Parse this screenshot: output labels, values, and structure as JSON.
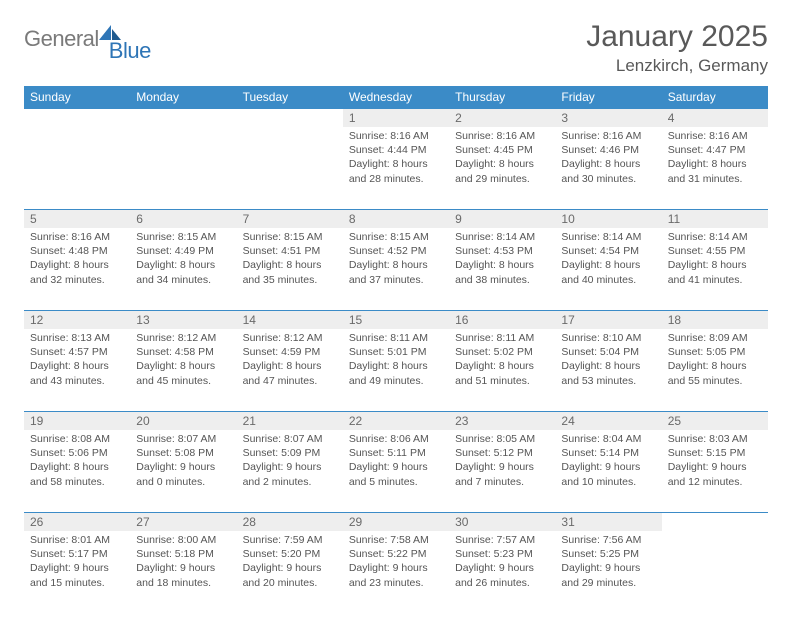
{
  "logo": {
    "general": "General",
    "blue": "Blue"
  },
  "title": "January 2025",
  "location": "Lenzkirch, Germany",
  "colors": {
    "header_bg": "#3b8bc7",
    "header_text": "#ffffff",
    "daynum_bg": "#eeeeee",
    "cell_border": "#3b8bc7",
    "text": "#555555",
    "logo_gray": "#7a7a7a",
    "logo_blue": "#2e75b6"
  },
  "weekdays": [
    "Sunday",
    "Monday",
    "Tuesday",
    "Wednesday",
    "Thursday",
    "Friday",
    "Saturday"
  ],
  "weeks": [
    [
      null,
      null,
      null,
      {
        "d": "1",
        "sr": "8:16 AM",
        "ss": "4:44 PM",
        "dl1": "8 hours",
        "dl2": "28 minutes."
      },
      {
        "d": "2",
        "sr": "8:16 AM",
        "ss": "4:45 PM",
        "dl1": "8 hours",
        "dl2": "29 minutes."
      },
      {
        "d": "3",
        "sr": "8:16 AM",
        "ss": "4:46 PM",
        "dl1": "8 hours",
        "dl2": "30 minutes."
      },
      {
        "d": "4",
        "sr": "8:16 AM",
        "ss": "4:47 PM",
        "dl1": "8 hours",
        "dl2": "31 minutes."
      }
    ],
    [
      {
        "d": "5",
        "sr": "8:16 AM",
        "ss": "4:48 PM",
        "dl1": "8 hours",
        "dl2": "32 minutes."
      },
      {
        "d": "6",
        "sr": "8:15 AM",
        "ss": "4:49 PM",
        "dl1": "8 hours",
        "dl2": "34 minutes."
      },
      {
        "d": "7",
        "sr": "8:15 AM",
        "ss": "4:51 PM",
        "dl1": "8 hours",
        "dl2": "35 minutes."
      },
      {
        "d": "8",
        "sr": "8:15 AM",
        "ss": "4:52 PM",
        "dl1": "8 hours",
        "dl2": "37 minutes."
      },
      {
        "d": "9",
        "sr": "8:14 AM",
        "ss": "4:53 PM",
        "dl1": "8 hours",
        "dl2": "38 minutes."
      },
      {
        "d": "10",
        "sr": "8:14 AM",
        "ss": "4:54 PM",
        "dl1": "8 hours",
        "dl2": "40 minutes."
      },
      {
        "d": "11",
        "sr": "8:14 AM",
        "ss": "4:55 PM",
        "dl1": "8 hours",
        "dl2": "41 minutes."
      }
    ],
    [
      {
        "d": "12",
        "sr": "8:13 AM",
        "ss": "4:57 PM",
        "dl1": "8 hours",
        "dl2": "43 minutes."
      },
      {
        "d": "13",
        "sr": "8:12 AM",
        "ss": "4:58 PM",
        "dl1": "8 hours",
        "dl2": "45 minutes."
      },
      {
        "d": "14",
        "sr": "8:12 AM",
        "ss": "4:59 PM",
        "dl1": "8 hours",
        "dl2": "47 minutes."
      },
      {
        "d": "15",
        "sr": "8:11 AM",
        "ss": "5:01 PM",
        "dl1": "8 hours",
        "dl2": "49 minutes."
      },
      {
        "d": "16",
        "sr": "8:11 AM",
        "ss": "5:02 PM",
        "dl1": "8 hours",
        "dl2": "51 minutes."
      },
      {
        "d": "17",
        "sr": "8:10 AM",
        "ss": "5:04 PM",
        "dl1": "8 hours",
        "dl2": "53 minutes."
      },
      {
        "d": "18",
        "sr": "8:09 AM",
        "ss": "5:05 PM",
        "dl1": "8 hours",
        "dl2": "55 minutes."
      }
    ],
    [
      {
        "d": "19",
        "sr": "8:08 AM",
        "ss": "5:06 PM",
        "dl1": "8 hours",
        "dl2": "58 minutes."
      },
      {
        "d": "20",
        "sr": "8:07 AM",
        "ss": "5:08 PM",
        "dl1": "9 hours",
        "dl2": "0 minutes."
      },
      {
        "d": "21",
        "sr": "8:07 AM",
        "ss": "5:09 PM",
        "dl1": "9 hours",
        "dl2": "2 minutes."
      },
      {
        "d": "22",
        "sr": "8:06 AM",
        "ss": "5:11 PM",
        "dl1": "9 hours",
        "dl2": "5 minutes."
      },
      {
        "d": "23",
        "sr": "8:05 AM",
        "ss": "5:12 PM",
        "dl1": "9 hours",
        "dl2": "7 minutes."
      },
      {
        "d": "24",
        "sr": "8:04 AM",
        "ss": "5:14 PM",
        "dl1": "9 hours",
        "dl2": "10 minutes."
      },
      {
        "d": "25",
        "sr": "8:03 AM",
        "ss": "5:15 PM",
        "dl1": "9 hours",
        "dl2": "12 minutes."
      }
    ],
    [
      {
        "d": "26",
        "sr": "8:01 AM",
        "ss": "5:17 PM",
        "dl1": "9 hours",
        "dl2": "15 minutes."
      },
      {
        "d": "27",
        "sr": "8:00 AM",
        "ss": "5:18 PM",
        "dl1": "9 hours",
        "dl2": "18 minutes."
      },
      {
        "d": "28",
        "sr": "7:59 AM",
        "ss": "5:20 PM",
        "dl1": "9 hours",
        "dl2": "20 minutes."
      },
      {
        "d": "29",
        "sr": "7:58 AM",
        "ss": "5:22 PM",
        "dl1": "9 hours",
        "dl2": "23 minutes."
      },
      {
        "d": "30",
        "sr": "7:57 AM",
        "ss": "5:23 PM",
        "dl1": "9 hours",
        "dl2": "26 minutes."
      },
      {
        "d": "31",
        "sr": "7:56 AM",
        "ss": "5:25 PM",
        "dl1": "9 hours",
        "dl2": "29 minutes."
      },
      null
    ]
  ]
}
